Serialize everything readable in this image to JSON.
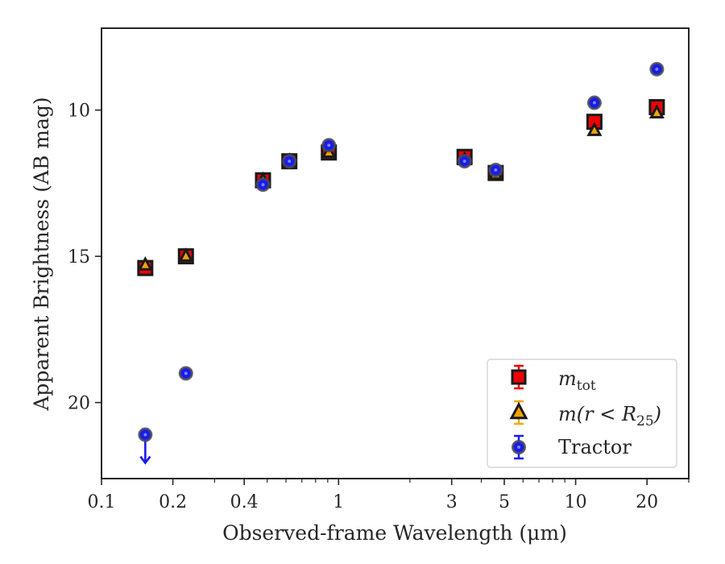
{
  "chart_data": {
    "type": "scatter",
    "xlabel": "Observed-frame Wavelength (μm)",
    "ylabel": "Apparent Brightness (AB mag)",
    "x_scale": "log",
    "y_inverted": true,
    "xlim": [
      0.1,
      30
    ],
    "ylim": [
      22.6,
      7.2
    ],
    "x_ticks": [
      {
        "value": 0.1,
        "label": "0.1"
      },
      {
        "value": 0.2,
        "label": "0.2"
      },
      {
        "value": 0.4,
        "label": "0.4"
      },
      {
        "value": 1,
        "label": "1"
      },
      {
        "value": 3,
        "label": "3"
      },
      {
        "value": 5,
        "label": "5"
      },
      {
        "value": 10,
        "label": "10"
      },
      {
        "value": 20,
        "label": "20"
      }
    ],
    "y_ticks": [
      {
        "value": 10,
        "label": "10"
      },
      {
        "value": 15,
        "label": "15"
      },
      {
        "value": 20,
        "label": "20"
      }
    ],
    "grid": false,
    "legend_position": "lower-right",
    "series": [
      {
        "name": "m_tot",
        "marker": "square",
        "color": "#ee0000",
        "points": [
          {
            "x": 0.153,
            "y": 15.4
          },
          {
            "x": 0.227,
            "y": 15.0
          },
          {
            "x": 0.48,
            "y": 12.4
          },
          {
            "x": 0.62,
            "y": 11.75
          },
          {
            "x": 0.91,
            "y": 11.45
          },
          {
            "x": 3.4,
            "y": 11.6
          },
          {
            "x": 4.6,
            "y": 12.15
          },
          {
            "x": 12.0,
            "y": 10.4
          },
          {
            "x": 22.0,
            "y": 9.9
          }
        ]
      },
      {
        "name": "m(r < R25)",
        "marker": "triangle",
        "color": "#f0a500",
        "points": [
          {
            "x": 0.153,
            "y": 15.3
          },
          {
            "x": 0.227,
            "y": 15.0
          },
          {
            "x": 0.48,
            "y": 12.4
          },
          {
            "x": 0.62,
            "y": 11.75
          },
          {
            "x": 0.91,
            "y": 11.45
          },
          {
            "x": 3.4,
            "y": 11.7
          },
          {
            "x": 4.6,
            "y": 12.2
          },
          {
            "x": 12.0,
            "y": 10.7
          },
          {
            "x": 22.0,
            "y": 10.1
          }
        ]
      },
      {
        "name": "Tractor",
        "marker": "circle",
        "color": "#1a1aee",
        "points": [
          {
            "x": 0.153,
            "y": 21.1,
            "upper_limit": true
          },
          {
            "x": 0.227,
            "y": 19.0
          },
          {
            "x": 0.48,
            "y": 12.55
          },
          {
            "x": 0.62,
            "y": 11.75
          },
          {
            "x": 0.91,
            "y": 11.2
          },
          {
            "x": 3.4,
            "y": 11.75
          },
          {
            "x": 4.6,
            "y": 12.05
          },
          {
            "x": 12.0,
            "y": 9.75
          },
          {
            "x": 22.0,
            "y": 8.6
          }
        ]
      }
    ],
    "legend": {
      "m_tot_main": "m",
      "m_tot_sub": "tot",
      "m_r25_prefix": "m(r < R",
      "m_r25_sub": "25",
      "m_r25_suffix": ")",
      "tractor": "Tractor"
    },
    "colors": {
      "axes": "#262626",
      "marker_edge": "#1a1a1a",
      "tractor_edge": "#4a4a5a"
    }
  }
}
